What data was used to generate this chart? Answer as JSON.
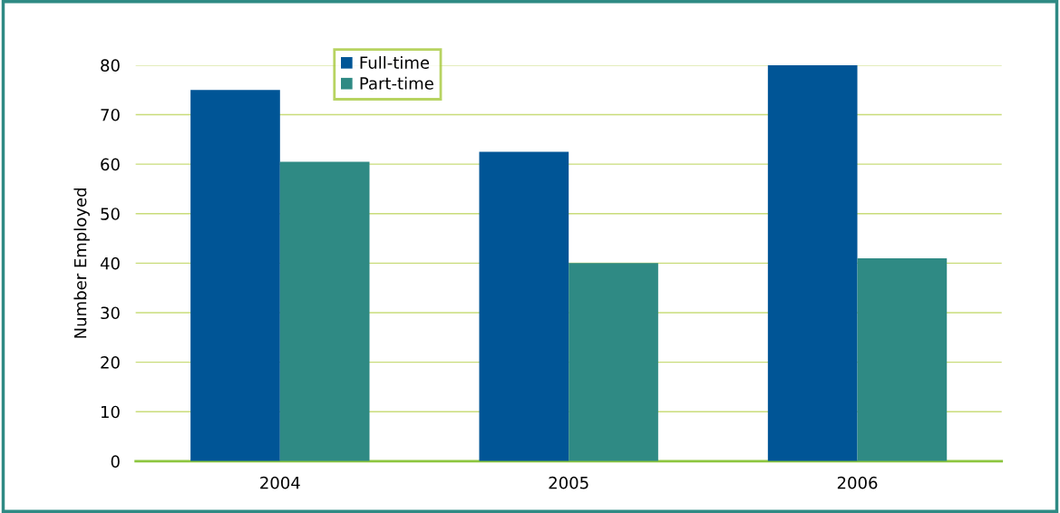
{
  "chart_data": {
    "type": "bar",
    "ylabel": "Number Employed",
    "categories": [
      "2004",
      "2005",
      "2006"
    ],
    "series": [
      {
        "name": "Full-time",
        "color": "#005596",
        "values": [
          75,
          62.5,
          80
        ]
      },
      {
        "name": "Part-time",
        "color": "#2f8a84",
        "values": [
          60.5,
          40,
          41
        ]
      }
    ],
    "ylim": [
      0,
      80
    ],
    "yticks": [
      0,
      10,
      20,
      30,
      40,
      50,
      60,
      70,
      80
    ],
    "grid": "y",
    "legend": "top left"
  }
}
